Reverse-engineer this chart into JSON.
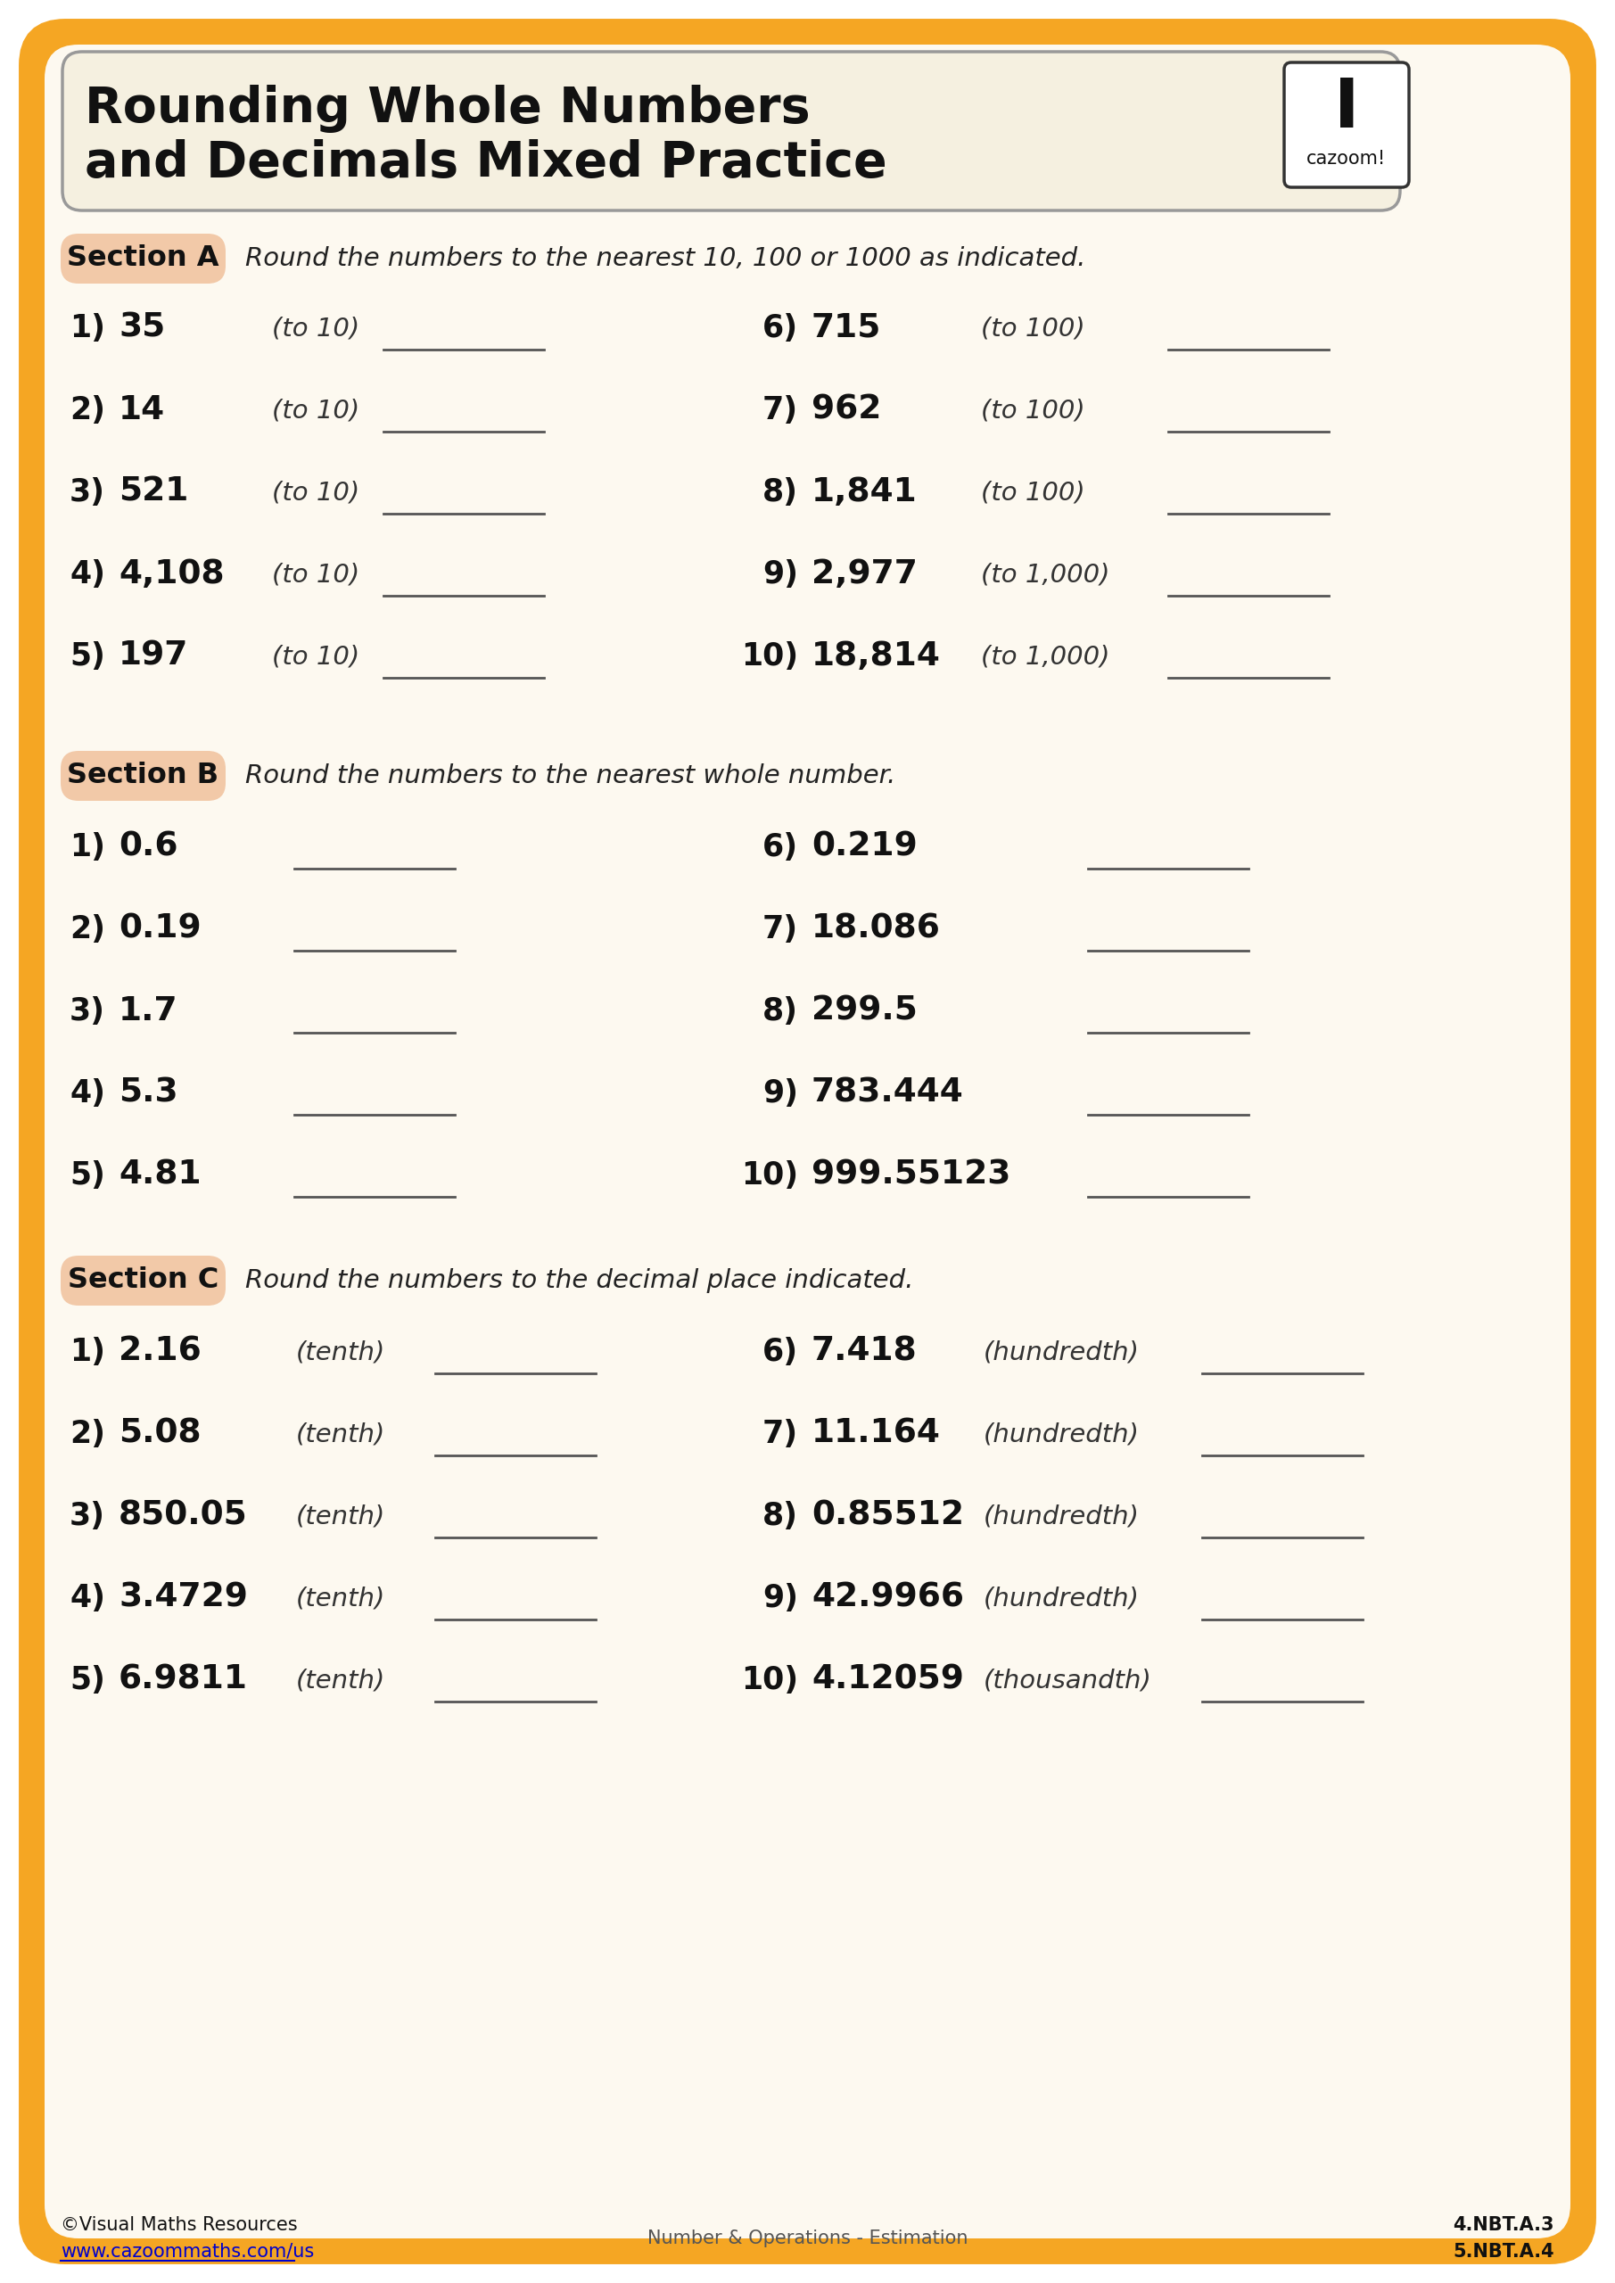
{
  "page_bg": "#ffffff",
  "outer_border_color": "#f5a623",
  "inner_bg": "#fdf9f0",
  "title_box_bg": "#f5f0e0",
  "title_line1": "Rounding Whole Numbers",
  "title_line2": "and Decimals Mixed Practice",
  "section_label_bg": "#f2c9a8",
  "footer_text_left1": "©Visual Maths Resources",
  "footer_text_left2": "www.cazoommaths.com/us",
  "footer_text_center": "Number & Operations - Estimation",
  "footer_text_right1": "4.NBT.A.3",
  "footer_text_right2": "5.NBT.A.4",
  "section_a": {
    "label": "Section A",
    "instruction": "Round the numbers to the nearest 10, 100 or 1000 as indicated.",
    "left_items": [
      {
        "num": "1)",
        "value": "35",
        "hint": "(to 10)"
      },
      {
        "num": "2)",
        "value": "14",
        "hint": "(to 10)"
      },
      {
        "num": "3)",
        "value": "521",
        "hint": "(to 10)"
      },
      {
        "num": "4)",
        "value": "4,108",
        "hint": "(to 10)"
      },
      {
        "num": "5)",
        "value": "197",
        "hint": "(to 10)"
      }
    ],
    "right_items": [
      {
        "num": "6)",
        "value": "715",
        "hint": "(to 100)"
      },
      {
        "num": "7)",
        "value": "962",
        "hint": "(to 100)"
      },
      {
        "num": "8)",
        "value": "1,841",
        "hint": "(to 100)"
      },
      {
        "num": "9)",
        "value": "2,977",
        "hint": "(to 1,000)"
      },
      {
        "num": "10)",
        "value": "18,814",
        "hint": "(to 1,000)"
      }
    ]
  },
  "section_b": {
    "label": "Section B",
    "instruction": "Round the numbers to the nearest whole number.",
    "left_items": [
      {
        "num": "1)",
        "value": "0.6"
      },
      {
        "num": "2)",
        "value": "0.19"
      },
      {
        "num": "3)",
        "value": "1.7"
      },
      {
        "num": "4)",
        "value": "5.3"
      },
      {
        "num": "5)",
        "value": "4.81"
      }
    ],
    "right_items": [
      {
        "num": "6)",
        "value": "0.219"
      },
      {
        "num": "7)",
        "value": "18.086"
      },
      {
        "num": "8)",
        "value": "299.5"
      },
      {
        "num": "9)",
        "value": "783.444"
      },
      {
        "num": "10)",
        "value": "999.55123"
      }
    ]
  },
  "section_c": {
    "label": "Section C",
    "instruction": "Round the numbers to the decimal place indicated.",
    "left_items": [
      {
        "num": "1)",
        "value": "2.16",
        "hint": "(tenth)"
      },
      {
        "num": "2)",
        "value": "5.08",
        "hint": "(tenth)"
      },
      {
        "num": "3)",
        "value": "850.05",
        "hint": "(tenth)"
      },
      {
        "num": "4)",
        "value": "3.4729",
        "hint": "(tenth)"
      },
      {
        "num": "5)",
        "value": "6.9811",
        "hint": "(tenth)"
      }
    ],
    "right_items": [
      {
        "num": "6)",
        "value": "7.418",
        "hint": "(hundredth)"
      },
      {
        "num": "7)",
        "value": "11.164",
        "hint": "(hundredth)"
      },
      {
        "num": "8)",
        "value": "0.85512",
        "hint": "(hundredth)"
      },
      {
        "num": "9)",
        "value": "42.9966",
        "hint": "(hundredth)"
      },
      {
        "num": "10)",
        "value": "4.12059",
        "hint": "(thousandth)"
      }
    ]
  }
}
